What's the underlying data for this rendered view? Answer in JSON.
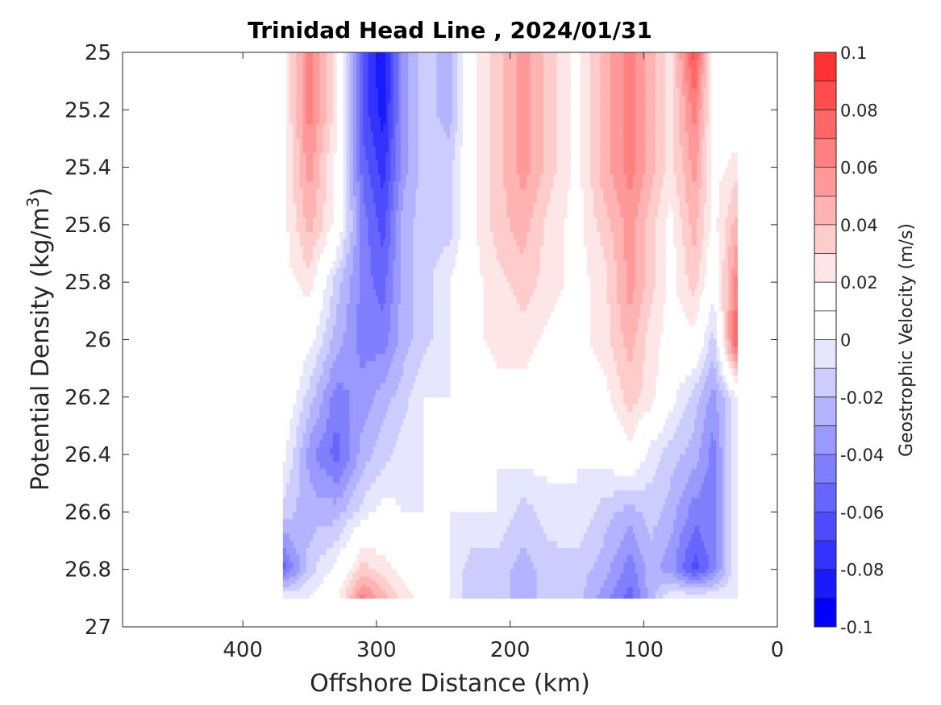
{
  "chart_data": {
    "type": "heatmap",
    "title": "Trinidad Head Line , 2024/01/31",
    "xlabel": "Offshore Distance (km)",
    "ylabel_base": "Potential Density (kg/m",
    "ylabel_sup": "3",
    "ylabel_close": ")",
    "xlim": [
      490,
      0
    ],
    "ylim": [
      25,
      27
    ],
    "x_reversed": true,
    "y_reversed": true,
    "xticks": [
      400,
      300,
      200,
      100,
      0
    ],
    "xtick_labels": [
      "400",
      "300",
      "200",
      "100",
      "0"
    ],
    "yticks": [
      25,
      25.2,
      25.4,
      25.6,
      25.8,
      26,
      26.2,
      26.4,
      26.6,
      26.8,
      27
    ],
    "ytick_labels": [
      "25",
      "25.2",
      "25.4",
      "25.6",
      "25.8",
      "26",
      "26.2",
      "26.4",
      "26.6",
      "26.8",
      "27"
    ],
    "colorbar": {
      "label": "Geostrophic Velocity (m/s)",
      "range": [
        -0.1,
        0.1
      ],
      "levels": [
        -0.1,
        -0.09,
        -0.08,
        -0.07,
        -0.06,
        -0.05,
        -0.04,
        -0.03,
        -0.02,
        -0.01,
        0,
        0.01,
        0.02,
        0.03,
        0.04,
        0.05,
        0.06,
        0.07,
        0.08,
        0.09,
        0.1
      ],
      "ticks": [
        -0.1,
        -0.08,
        -0.06,
        -0.04,
        -0.02,
        0,
        0.02,
        0.04,
        0.06,
        0.08,
        0.1
      ],
      "tick_labels": [
        "-0.1",
        "-0.08",
        "-0.06",
        "-0.04",
        "-0.02",
        "0",
        "0.02",
        "0.04",
        "0.06",
        "0.08",
        "0.1"
      ],
      "colors": [
        "#0000ff",
        "#1a1aff",
        "#3333ff",
        "#4d4dff",
        "#6666ff",
        "#8080ff",
        "#9999ff",
        "#b3b3ff",
        "#ccccff",
        "#e6e6ff",
        "#ffffff",
        "#ffffff",
        "#ffe6e6",
        "#ffcccc",
        "#ffb3b3",
        "#ff9999",
        "#ff8080",
        "#ff6666",
        "#ff4d4d",
        "#ff3333",
        "#ff1a1a"
      ]
    },
    "x": [
      370,
      350,
      330,
      310,
      295,
      280,
      265,
      245,
      230,
      210,
      190,
      170,
      150,
      130,
      110,
      95,
      80,
      62,
      48,
      30
    ],
    "y": [
      25,
      25.2,
      25.4,
      25.6,
      25.8,
      26,
      26.2,
      26.4,
      26.6,
      26.8,
      26.9
    ],
    "z": [
      [
        0.015,
        0.065,
        0.025,
        -0.065,
        -0.09,
        -0.035,
        -0.015,
        -0.025,
        0.015,
        0.035,
        0.055,
        0.035,
        0.015,
        0.045,
        0.065,
        0.045,
        0.025,
        0.085,
        0.015,
        0.0
      ],
      [
        0.015,
        0.065,
        0.025,
        -0.065,
        -0.085,
        -0.035,
        -0.015,
        -0.025,
        0.015,
        0.035,
        0.055,
        0.035,
        0.015,
        0.045,
        0.065,
        0.045,
        0.025,
        0.065,
        0.015,
        0.005
      ],
      [
        0.015,
        0.055,
        0.015,
        -0.055,
        -0.075,
        -0.035,
        -0.015,
        -0.015,
        0.015,
        0.035,
        0.055,
        0.035,
        0.015,
        0.045,
        0.065,
        0.045,
        0.025,
        0.055,
        0.015,
        0.025
      ],
      [
        0.015,
        0.045,
        0.015,
        -0.045,
        -0.065,
        -0.025,
        -0.015,
        -0.015,
        0.015,
        0.035,
        0.045,
        0.025,
        0.015,
        0.035,
        0.055,
        0.035,
        0.015,
        0.045,
        0.015,
        0.045
      ],
      [
        0.015,
        0.025,
        -0.015,
        -0.045,
        -0.055,
        -0.025,
        -0.015,
        0.0,
        0.015,
        0.025,
        0.035,
        0.025,
        0.015,
        0.025,
        0.055,
        0.035,
        0.015,
        0.035,
        0.005,
        0.065
      ],
      [
        0.015,
        0.005,
        -0.025,
        -0.045,
        -0.045,
        -0.025,
        -0.015,
        0.0,
        0.015,
        0.025,
        0.025,
        0.015,
        0.015,
        0.025,
        0.045,
        0.025,
        0.015,
        0.015,
        -0.015,
        0.085
      ],
      [
        0.015,
        -0.015,
        -0.045,
        -0.035,
        -0.025,
        -0.015,
        0.0,
        0.0,
        0.0,
        0.015,
        0.015,
        0.015,
        0.005,
        0.015,
        0.035,
        0.025,
        0.005,
        -0.015,
        -0.035,
        0.0
      ],
      [
        0.005,
        -0.035,
        -0.055,
        -0.025,
        -0.015,
        -0.005,
        0.0,
        0.0,
        0.0,
        0.0,
        0.005,
        0.005,
        0.0,
        0.005,
        0.015,
        -0.005,
        -0.015,
        -0.025,
        -0.045,
        0.0
      ],
      [
        -0.015,
        -0.025,
        -0.025,
        -0.005,
        0.005,
        0.0,
        0.0,
        0.0,
        0.0,
        0.0,
        -0.015,
        -0.005,
        0.0,
        -0.015,
        -0.025,
        -0.015,
        -0.025,
        -0.045,
        -0.045,
        0.0
      ],
      [
        -0.055,
        -0.015,
        0.005,
        0.035,
        0.025,
        0.015,
        0.015,
        0.0,
        -0.015,
        -0.015,
        -0.025,
        -0.015,
        -0.015,
        -0.025,
        -0.045,
        -0.025,
        -0.035,
        -0.065,
        -0.045,
        0.0
      ],
      [
        0.0,
        0.0,
        0.015,
        0.065,
        0.045,
        0.025,
        0.015,
        0.0,
        -0.015,
        -0.015,
        -0.025,
        -0.015,
        -0.015,
        -0.035,
        -0.055,
        -0.025,
        0.0,
        0.0,
        0.0,
        0.0
      ]
    ]
  }
}
